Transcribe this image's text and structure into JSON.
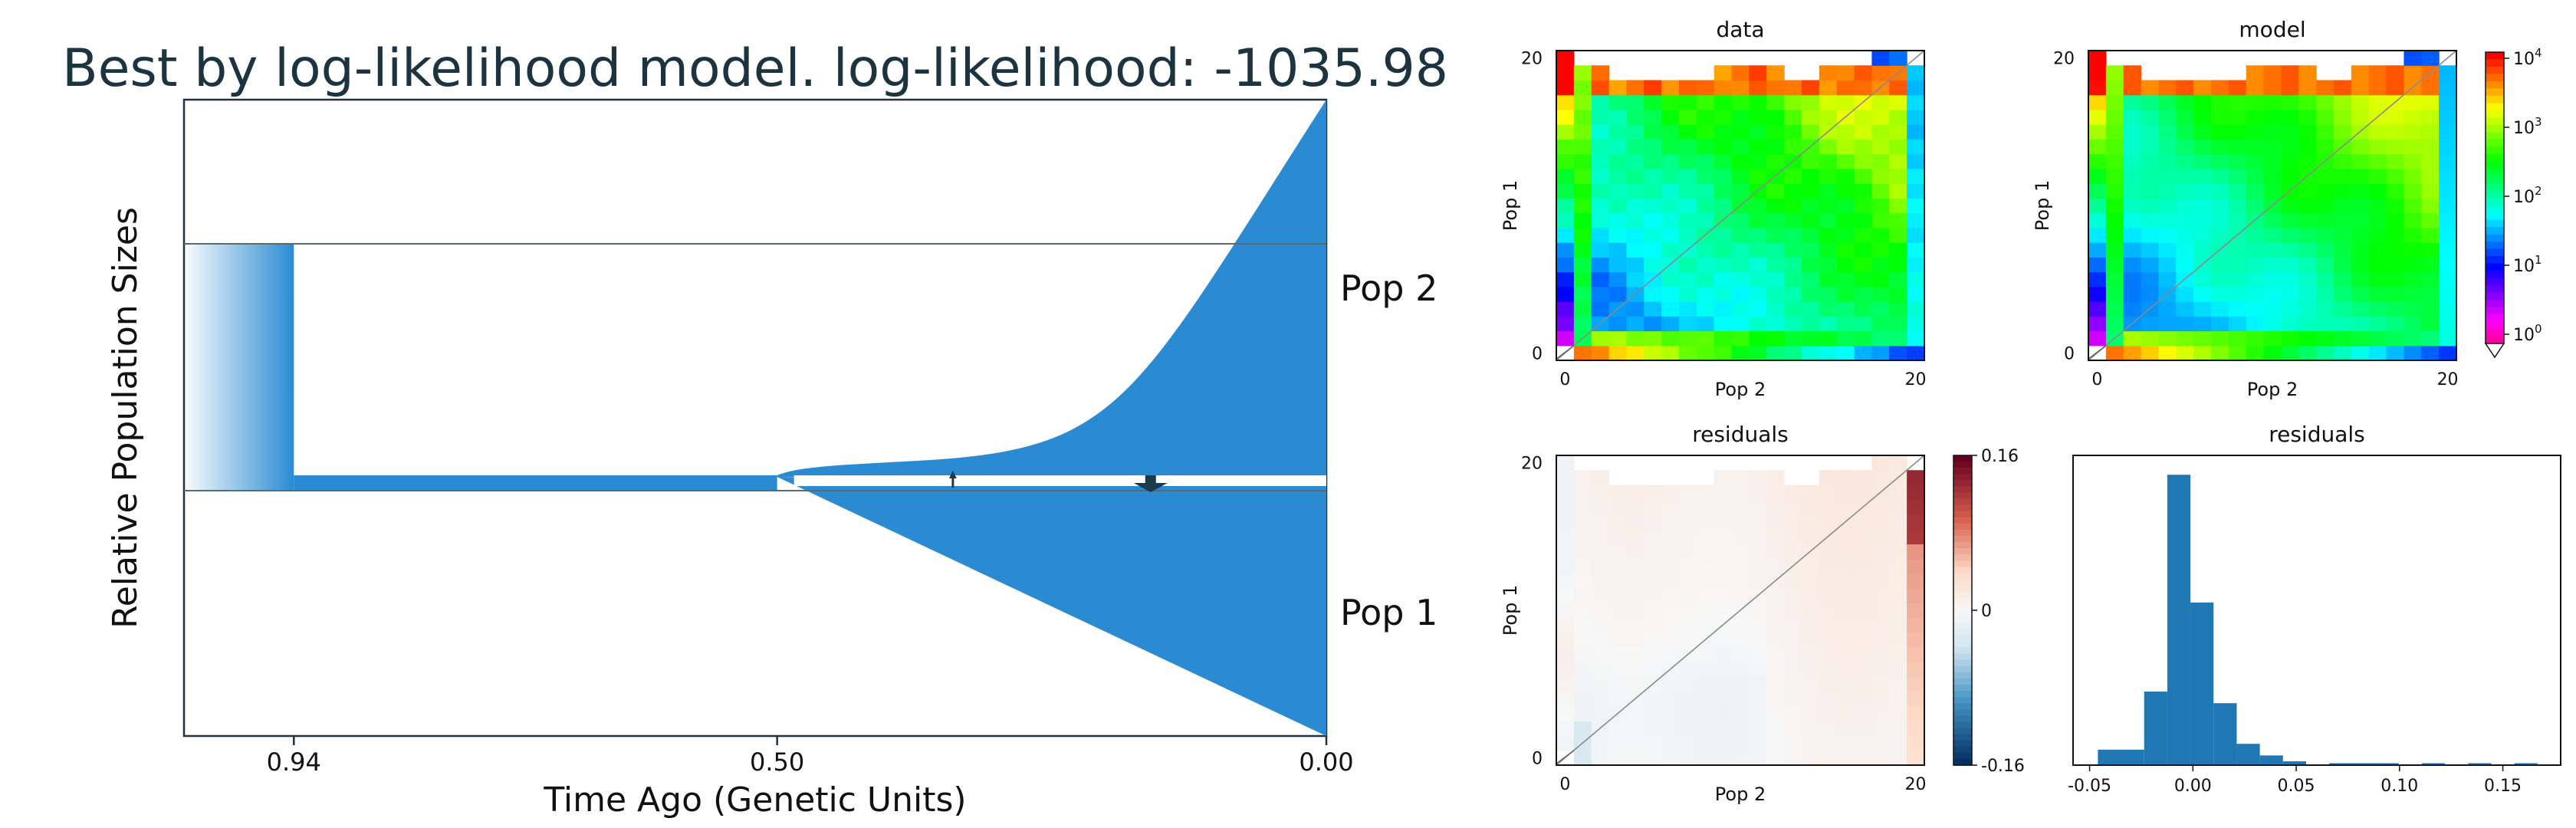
{
  "chart_data": [
    {
      "type": "demographic-model",
      "title": "Best by log-likelihood model. log-likelihood: -1035.98",
      "xlabel": "Time Ago (Genetic Units)",
      "ylabel": "Relative Population Sizes",
      "x_ticks": [
        "0.94",
        "0.50",
        "0.00"
      ],
      "x_tick_values": [
        0.94,
        0.5,
        0.0
      ],
      "xlim": [
        1.04,
        0.0
      ],
      "events": [
        {
          "time": 0.94,
          "kind": "size-change"
        },
        {
          "time": 0.5,
          "kind": "split"
        }
      ],
      "populations": [
        {
          "name": "Pop 2",
          "size_at_split": 0.02,
          "size_at_present": 2.0,
          "growth": "exponential"
        },
        {
          "name": "Pop 1",
          "size_at_split": 0.02,
          "size_at_present": 1.5,
          "growth": "linear"
        }
      ],
      "ancestral": {
        "size_before_0.94": 1.0,
        "size_0.94_to_0.50": 0.05
      },
      "migration_arrows": [
        {
          "time": 0.34,
          "direction": "up",
          "strength": "small"
        },
        {
          "time": 0.16,
          "direction": "down",
          "strength": "large"
        }
      ],
      "colors": {
        "population": "#2a8bd3",
        "title": "#1c3340",
        "arrow": "#1b3a4b"
      }
    },
    {
      "type": "heatmap",
      "title": "data",
      "xlabel": "Pop 2",
      "ylabel": "Pop 1",
      "x_ticks": [
        "0",
        "20"
      ],
      "y_ticks": [
        "0",
        "20"
      ],
      "grid_size": 21,
      "scale": "log",
      "masked_corners": true
    },
    {
      "type": "heatmap",
      "title": "model",
      "xlabel": "Pop 2",
      "ylabel": "Pop 1",
      "x_ticks": [
        "0",
        "20"
      ],
      "y_ticks": [
        "0",
        "20"
      ],
      "grid_size": 21,
      "scale": "log",
      "colorbar": {
        "colormap": "hsv",
        "ticks": [
          {
            "base": "10",
            "exp": "0"
          },
          {
            "base": "10",
            "exp": "1"
          },
          {
            "base": "10",
            "exp": "2"
          },
          {
            "base": "10",
            "exp": "3"
          },
          {
            "base": "10",
            "exp": "4"
          }
        ],
        "extend": "min"
      }
    },
    {
      "type": "heatmap",
      "title": "residuals",
      "xlabel": "Pop 2",
      "ylabel": "Pop 1",
      "x_ticks": [
        "0",
        "20"
      ],
      "y_ticks": [
        "0",
        "20"
      ],
      "grid_size": 21,
      "colorbar": {
        "colormap": "RdBu_r",
        "ticks": [
          "0.16",
          "0",
          "-0.16"
        ],
        "range": [
          -0.16,
          0.16
        ]
      }
    },
    {
      "type": "bar",
      "title": "residuals",
      "x_ticks": [
        "-0.05",
        "0.00",
        "0.05",
        "0.10",
        "0.15"
      ],
      "x_tick_values": [
        -0.05,
        0.0,
        0.05,
        0.1,
        0.15
      ],
      "xlim": [
        -0.058,
        0.178
      ],
      "bin_width": 0.0112,
      "bins_start": [
        -0.046,
        -0.0348,
        -0.0236,
        -0.0124,
        -0.0012,
        0.01,
        0.0212,
        0.0324,
        0.0436,
        0.0548,
        0.066,
        0.0772,
        0.0884,
        0.0996,
        0.1108,
        0.122,
        0.1332,
        0.1444,
        0.1556
      ],
      "values": [
        8,
        8,
        38,
        150,
        84,
        32,
        11,
        5,
        2,
        0,
        1,
        1,
        1,
        0,
        1,
        0,
        1,
        0,
        1
      ],
      "ylim": [
        0,
        160
      ],
      "color": "#1f77b4"
    }
  ]
}
